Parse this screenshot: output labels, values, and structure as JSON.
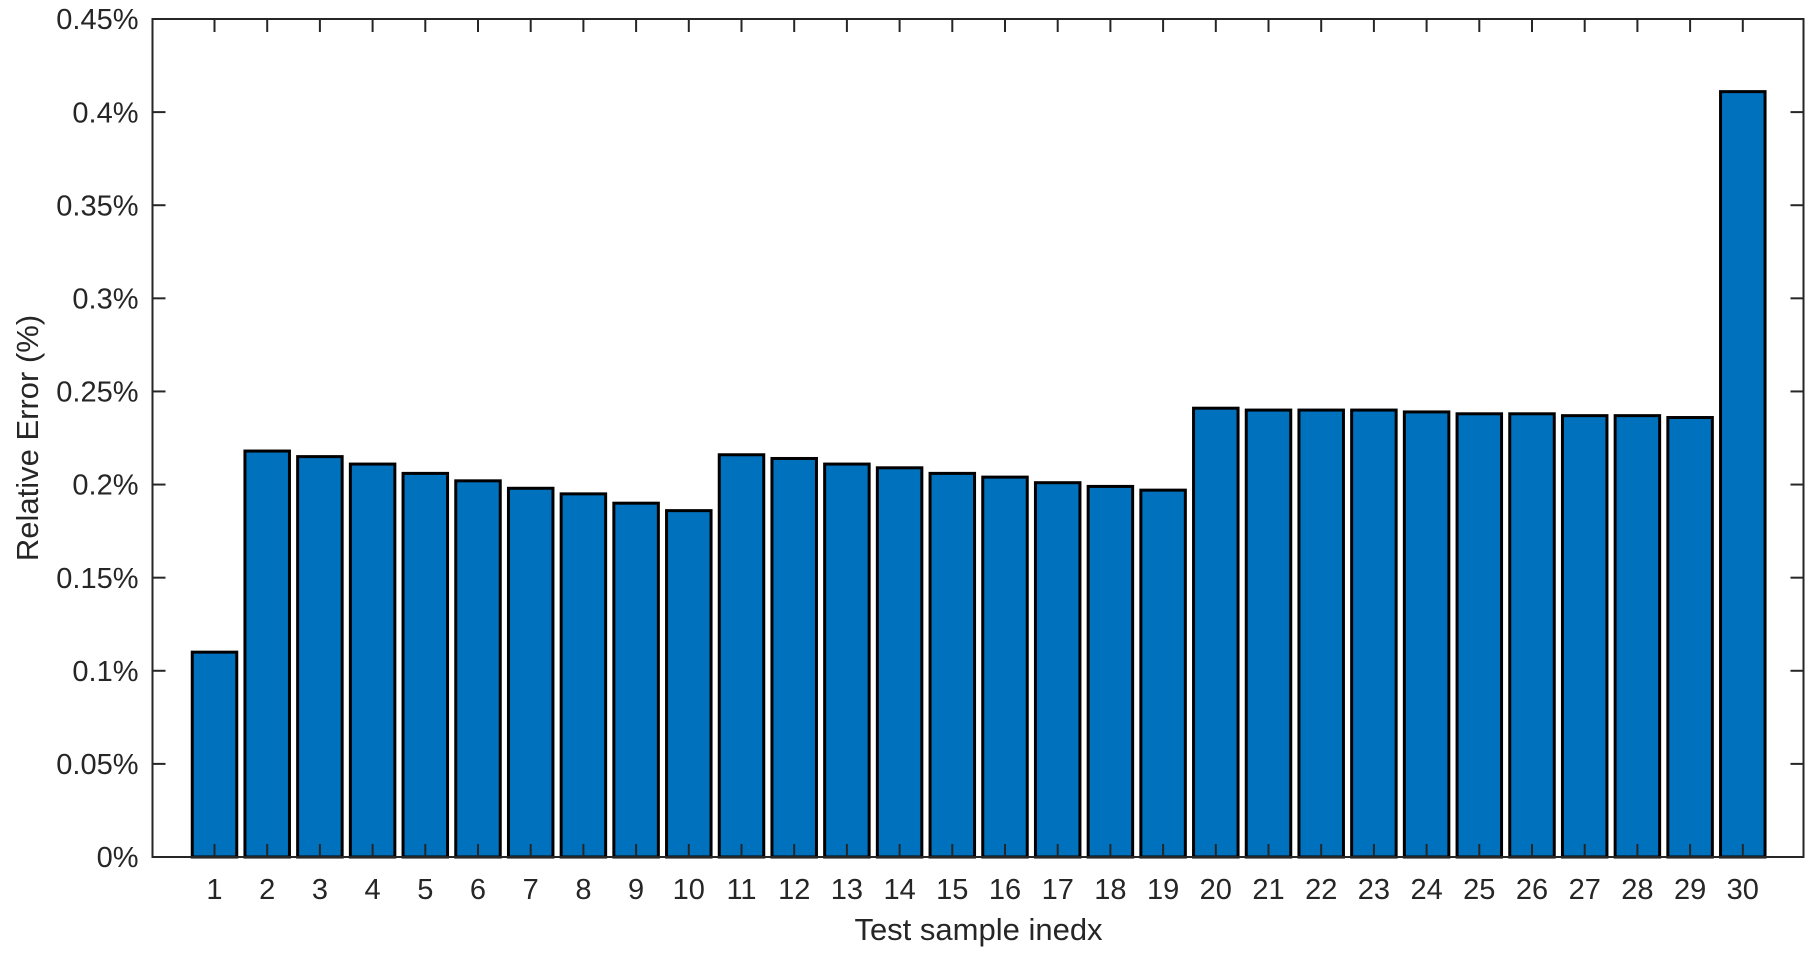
{
  "figure": {
    "background": "#FFFFFF"
  },
  "chart_data": {
    "type": "bar",
    "title": "",
    "xlabel": "Test sample inedx",
    "ylabel": "Relative Error（%）",
    "categories": [
      1,
      2,
      3,
      4,
      5,
      6,
      7,
      8,
      9,
      10,
      11,
      12,
      13,
      14,
      15,
      16,
      17,
      18,
      19,
      20,
      21,
      22,
      23,
      24,
      25,
      26,
      27,
      28,
      29,
      30
    ],
    "values": [
      0.11,
      0.218,
      0.215,
      0.211,
      0.206,
      0.202,
      0.198,
      0.195,
      0.19,
      0.186,
      0.216,
      0.214,
      0.211,
      0.209,
      0.206,
      0.204,
      0.201,
      0.199,
      0.197,
      0.241,
      0.24,
      0.24,
      0.24,
      0.239,
      0.238,
      0.238,
      0.237,
      0.237,
      0.236,
      0.411
    ],
    "values_unit": "percent",
    "ylim": [
      0,
      0.45
    ],
    "ytick_values": [
      0,
      0.05,
      0.1,
      0.15,
      0.2,
      0.25,
      0.3,
      0.35,
      0.4,
      0.45
    ],
    "ytick_labels": [
      "0%",
      "0.05%",
      "0.1%",
      "0.15%",
      "0.2%",
      "0.25%",
      "0.3%",
      "0.35%",
      "0.4%",
      "0.45%"
    ],
    "grid": false,
    "legend": null,
    "tick_direction": "in",
    "box": true,
    "bar_fill_color": "#0072BD",
    "bar_edge_color": "#000000",
    "axis_color": "#262626",
    "text_color": "#262626"
  }
}
